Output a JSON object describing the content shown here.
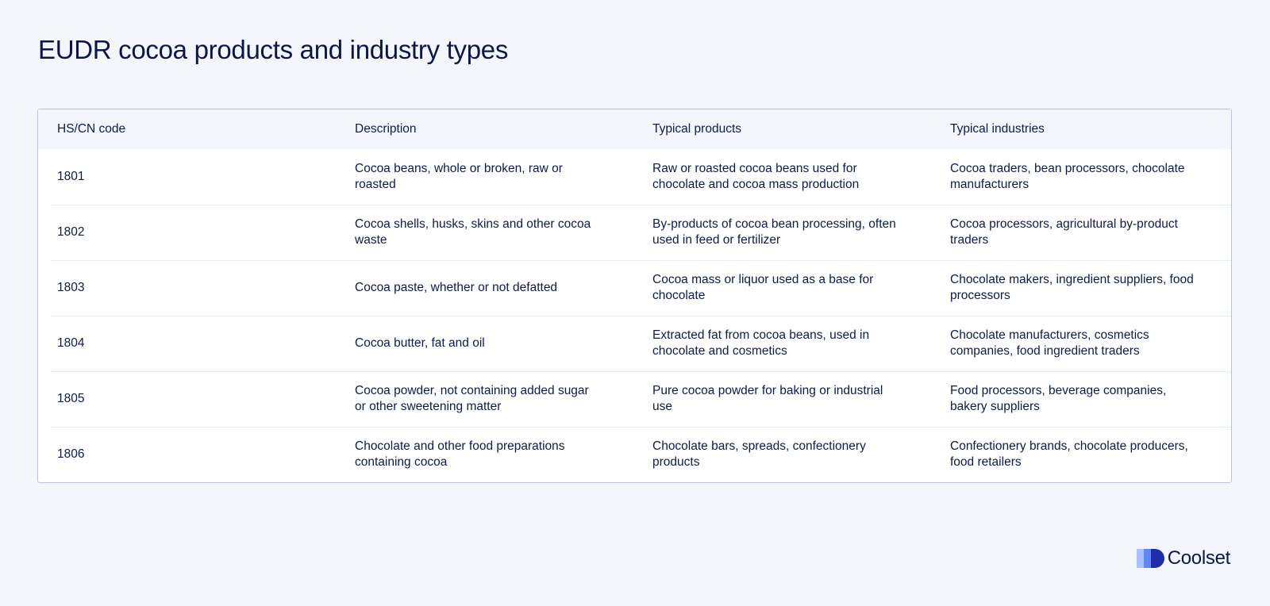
{
  "page": {
    "title": "EUDR cocoa products and industry types"
  },
  "table": {
    "headers": [
      "HS/CN code",
      "Description",
      "Typical products",
      "Typical industries"
    ],
    "rows": [
      [
        "1801",
        "Cocoa beans, whole or broken, raw or roasted",
        "Raw or roasted cocoa beans used for chocolate and cocoa mass production",
        "Cocoa traders, bean processors, chocolate manufacturers"
      ],
      [
        "1802",
        "Cocoa shells, husks, skins and other cocoa waste",
        "By-products of cocoa bean processing, often used in feed or fertilizer",
        "Cocoa processors, agricultural by-product traders"
      ],
      [
        "1803",
        "Cocoa paste, whether or not defatted",
        "Cocoa mass or liquor used as a base for chocolate",
        "Chocolate makers, ingredient suppliers, food processors"
      ],
      [
        "1804",
        "Cocoa butter, fat and oil",
        "Extracted fat from cocoa beans, used in chocolate and cosmetics",
        "Chocolate manufacturers, cosmetics companies, food ingredient traders"
      ],
      [
        "1805",
        "Cocoa powder, not containing added sugar or other sweetening matter",
        "Pure cocoa powder for baking or industrial use",
        "Food processors, beverage companies, bakery suppliers"
      ],
      [
        "1806",
        "Chocolate and other food preparations containing cocoa",
        "Chocolate bars, spreads, confectionery products",
        "Confectionery brands, chocolate producers, food retailers"
      ]
    ]
  },
  "brand": {
    "name": "Coolset",
    "icon": "coolset-logo-icon",
    "colors": [
      "#a9c1ff",
      "#5f86ff",
      "#1f2ea8"
    ]
  }
}
